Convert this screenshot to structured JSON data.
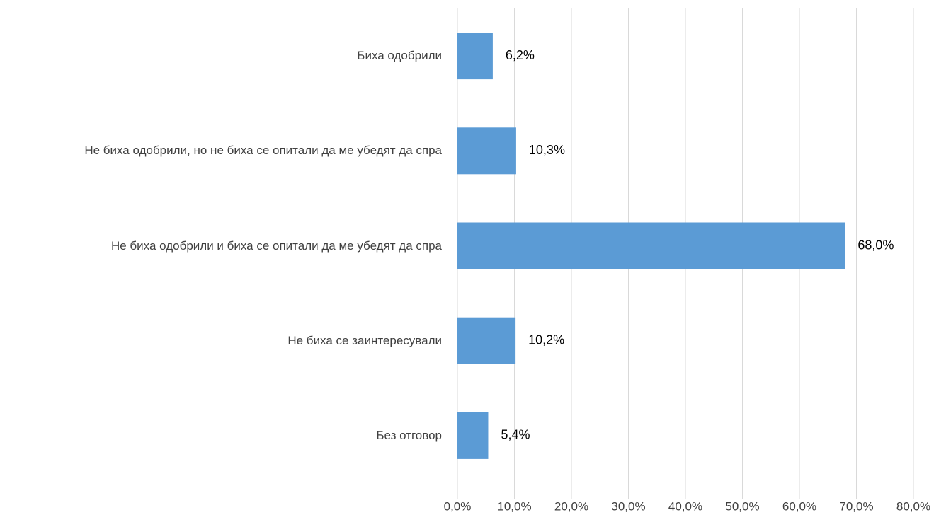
{
  "chart_data": {
    "type": "bar",
    "orientation": "horizontal",
    "categories": [
      "Биха одобрили",
      "Не биха одобрили, но не биха се опитали да ме убедят да спра",
      "Не биха одобрили и биха се опитали да ме убедят да спра",
      "Не биха се заинтересували",
      "Без отговор"
    ],
    "values": [
      6.2,
      10.3,
      68.0,
      10.2,
      5.4
    ],
    "value_labels": [
      "6,2%",
      "10,3%",
      "68,0%",
      "10,2%",
      "5,4%"
    ],
    "color": "#5b9bd5",
    "xlim": [
      0,
      80
    ],
    "xticks": [
      {
        "value": 0,
        "label": "0,0%"
      },
      {
        "value": 10,
        "label": "10,0%"
      },
      {
        "value": 20,
        "label": "20,0%"
      },
      {
        "value": 30,
        "label": "30,0%"
      },
      {
        "value": 40,
        "label": "40,0%"
      },
      {
        "value": 50,
        "label": "50,0%"
      },
      {
        "value": 60,
        "label": "60,0%"
      },
      {
        "value": 70,
        "label": "70,0%"
      },
      {
        "value": 80,
        "label": "80,0%"
      }
    ],
    "grid": true
  }
}
